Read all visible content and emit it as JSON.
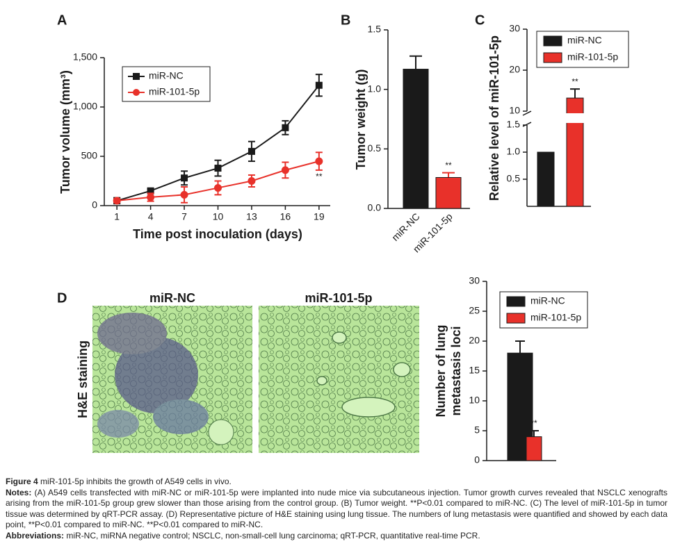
{
  "chart_data": [
    {
      "type": "line",
      "panel": "A",
      "ylabel": "Tumor volume (mm³)",
      "xlabel": "Time post inoculation (days)",
      "x": [
        1,
        4,
        7,
        10,
        13,
        16,
        19
      ],
      "xlim": [
        0,
        20
      ],
      "xticks": [
        1,
        4,
        7,
        10,
        13,
        16,
        19
      ],
      "ylim": [
        0,
        1500
      ],
      "yticks": [
        0,
        500,
        {
          "value": 1000,
          "label": "1,000"
        },
        {
          "value": 1500,
          "label": "1,500"
        }
      ],
      "series": [
        {
          "name": "miR-NC",
          "color": "#1a1a1a",
          "marker": "square",
          "values": [
            50,
            150,
            280,
            380,
            550,
            790,
            1220
          ],
          "errors": [
            30,
            20,
            70,
            80,
            100,
            70,
            110
          ]
        },
        {
          "name": "miR-101-5p",
          "color": "#e8312a",
          "marker": "circle",
          "values": [
            50,
            85,
            110,
            180,
            250,
            360,
            450
          ],
          "errors": [
            20,
            40,
            80,
            70,
            60,
            80,
            90
          ]
        }
      ],
      "annotation": "**"
    },
    {
      "type": "bar",
      "panel": "B",
      "ylabel": "Tumor weight (g)",
      "categories": [
        "miR-NC",
        "miR-101-5p"
      ],
      "values": [
        1.17,
        0.26
      ],
      "errors": [
        0.11,
        0.04
      ],
      "colors": [
        "#1a1a1a",
        "#e8312a"
      ],
      "ylim": [
        0,
        1.5
      ],
      "yticks": [
        {
          "value": 0,
          "label": "0.0"
        },
        0.5,
        {
          "value": 1,
          "label": "1.0"
        },
        1.5
      ],
      "annotation": "**"
    },
    {
      "type": "bar",
      "panel": "C",
      "ylabel": "Relative level of miR-101-5p",
      "series": [
        {
          "name": "miR-NC",
          "color": "#1a1a1a",
          "values": [
            1.0
          ]
        },
        {
          "name": "miR-101-5p",
          "color": "#e8312a",
          "values": [
            13.2
          ],
          "errors": [
            2.2
          ]
        }
      ],
      "ylim_lower": [
        0,
        1.5
      ],
      "yticks_lower": [
        0.5,
        {
          "value": 1,
          "label": "1.0"
        },
        1.5
      ],
      "ylim_upper": [
        10,
        30
      ],
      "yticks_upper": [
        10,
        20,
        30
      ],
      "annotation": "**"
    },
    {
      "type": "bar",
      "panel": "D",
      "ylabel": [
        "Number of lung",
        "metastasis loci"
      ],
      "image_labels": [
        "miR-NC",
        "miR-101-5p"
      ],
      "stain_label": "H&E staining",
      "series": [
        {
          "name": "miR-NC",
          "color": "#1a1a1a",
          "values": [
            18
          ],
          "errors": [
            2
          ]
        },
        {
          "name": "miR-101-5p",
          "color": "#e8312a",
          "values": [
            4
          ],
          "errors": [
            1
          ]
        }
      ],
      "ylim": [
        0,
        30
      ],
      "yticks": [
        0,
        5,
        10,
        15,
        20,
        25,
        30
      ],
      "annotation": "**"
    }
  ],
  "caption": {
    "label": "Figure 4",
    "title": "miR-101-5p inhibits the growth of A549 cells in vivo.",
    "notes_label": "Notes:",
    "notes": "(A) A549 cells transfected with miR-NC or miR-101-5p were implanted into nude mice via subcutaneous injection. Tumor growth curves revealed that NSCLC xenografts arising from the miR-101-5p group grew slower than those arising from the control group. (B) Tumor weight. **P<0.01 compared to miR-NC. (C) The level of miR-101-5p in tumor tissue was determined by qRT-PCR assay. (D) Representative picture of H&E staining using lung tissue. The numbers of lung metastasis were quantified and showed by each data point, **P<0.01 compared to miR-NC. **P<0.01 compared to miR-NC.",
    "abbreviations_label": "Abbreviations:",
    "abbreviations": "miR-NC, miRNA negative control; NSCLC, non-small-cell lung carcinoma; qRT-PCR, quantitative real-time PCR."
  }
}
